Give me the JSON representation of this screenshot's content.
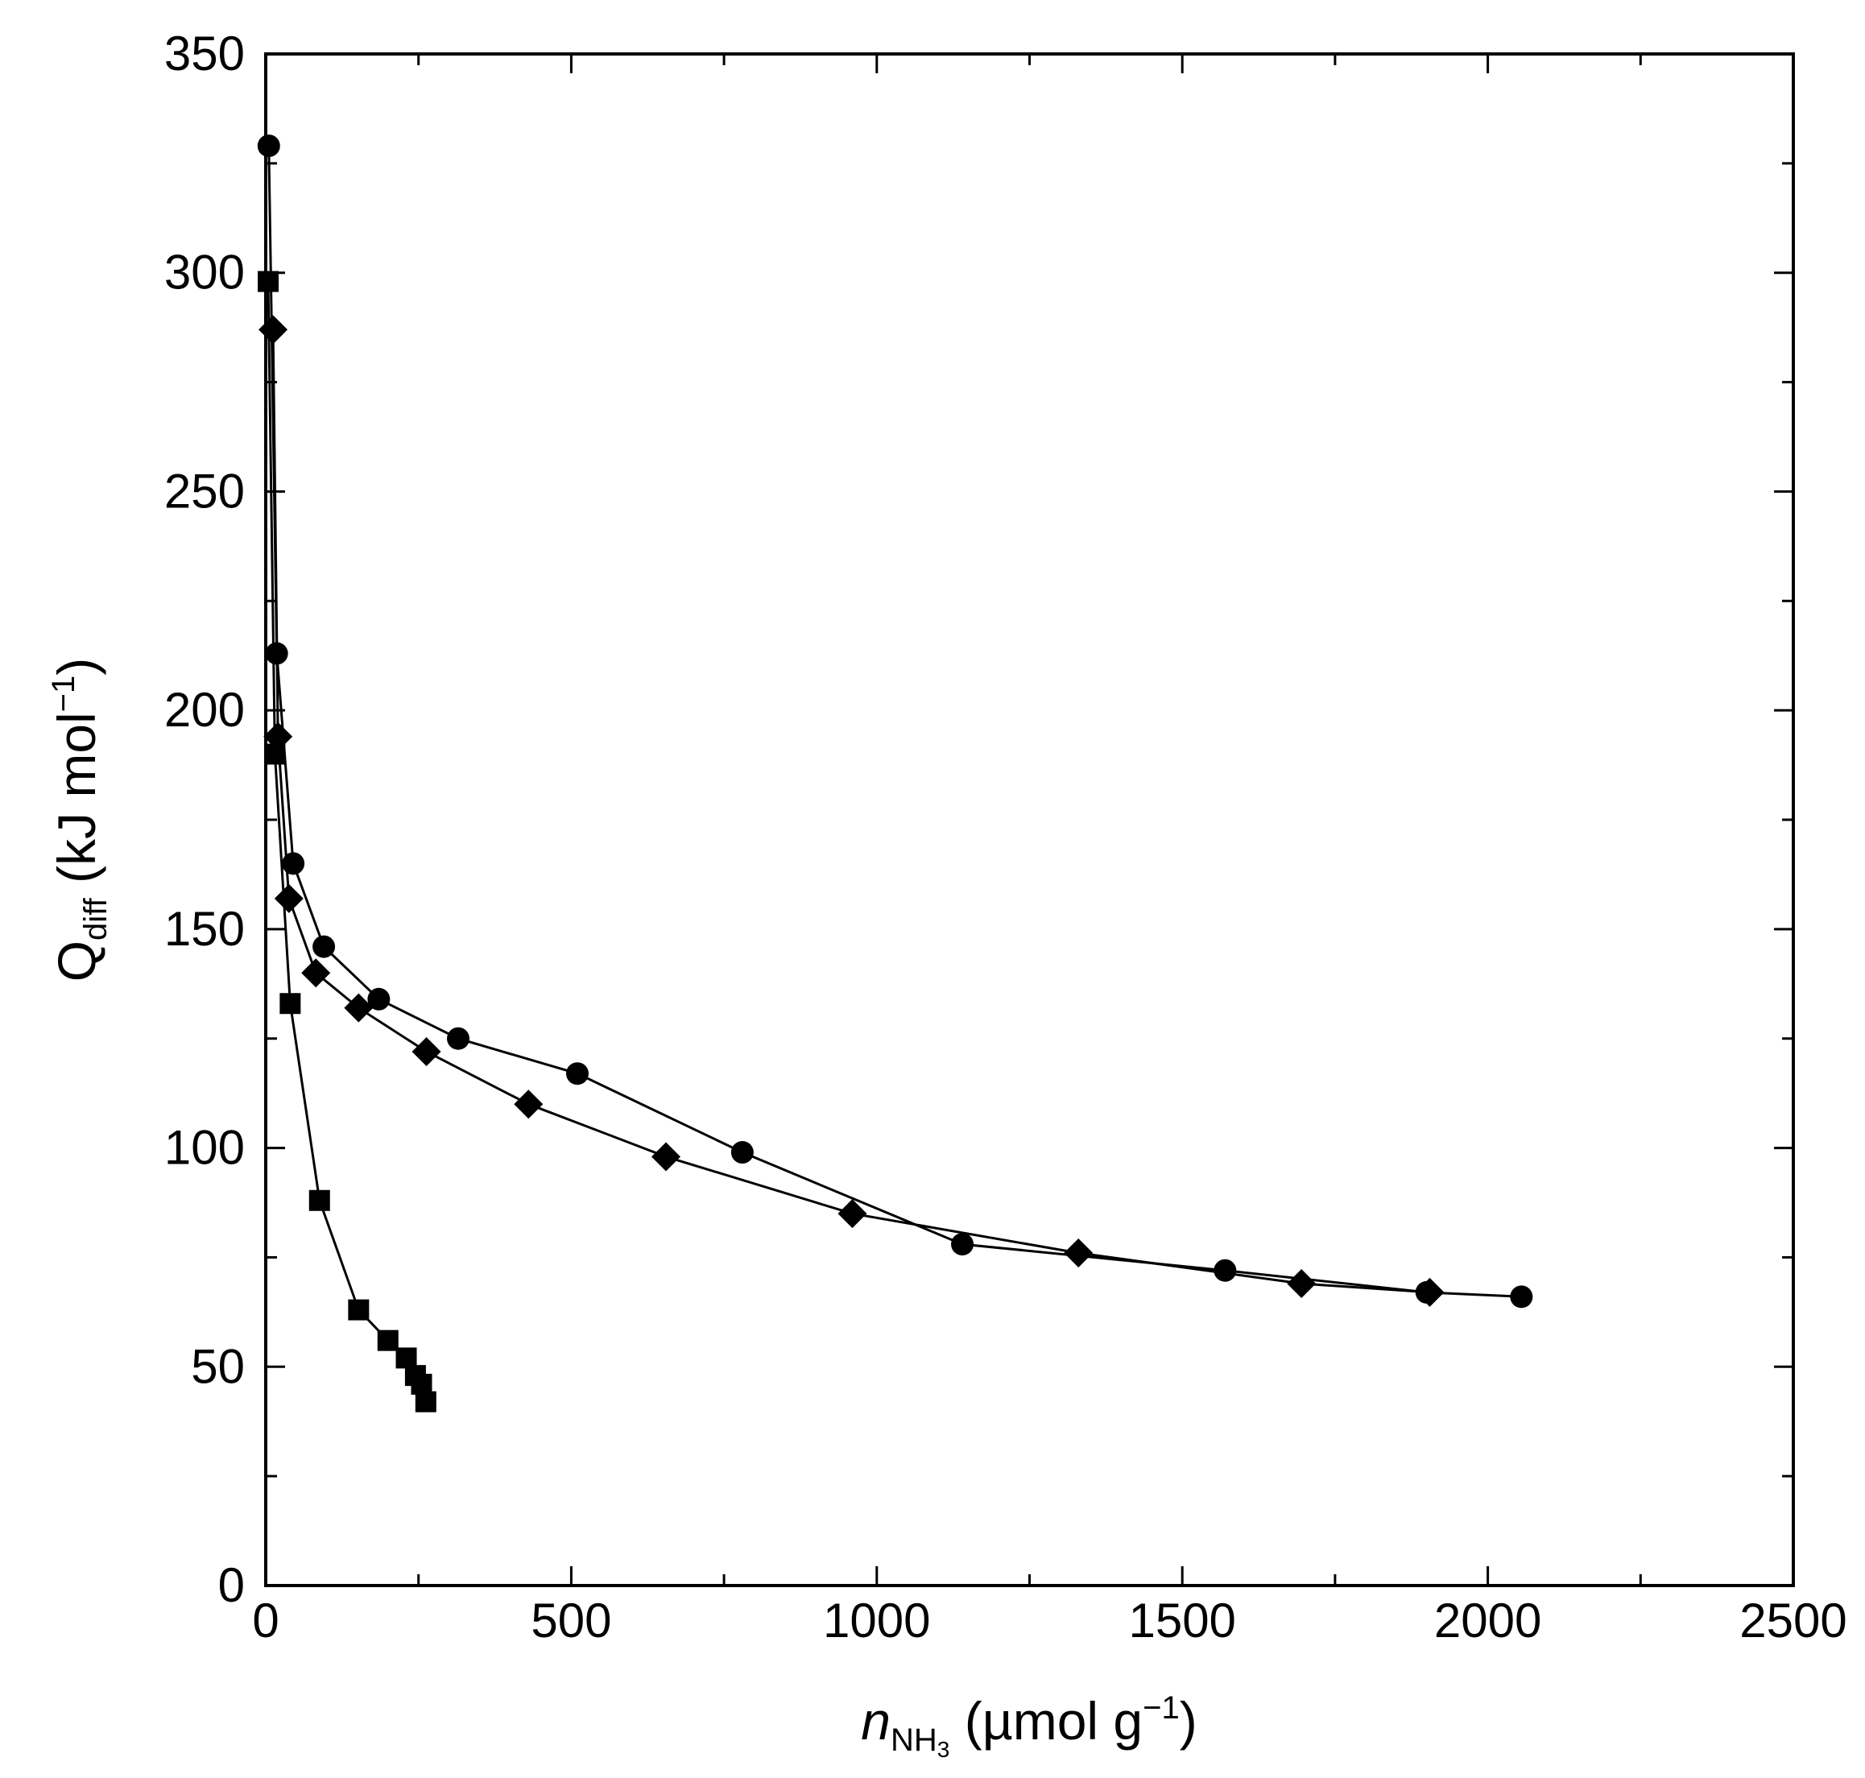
{
  "chart_data": {
    "type": "scatter",
    "xlim": [
      0,
      2500
    ],
    "ylim": [
      0,
      350
    ],
    "x_ticks": [
      0,
      500,
      1000,
      1500,
      2000,
      2500
    ],
    "y_ticks": [
      0,
      50,
      100,
      150,
      200,
      250,
      300,
      350
    ],
    "x_tick_labels": [
      "0",
      "500",
      "1000",
      "1500",
      "2000",
      "2500"
    ],
    "y_tick_labels": [
      "0",
      "50",
      "100",
      "150",
      "200",
      "250",
      "300",
      "350"
    ],
    "xlabel": {
      "italic": "n",
      "sub": "NH",
      "subsub": "3",
      "rest": " (µmol g",
      "sup": "−1",
      "close": ")"
    },
    "ylabel": {
      "main": "Q",
      "sub": "diff",
      "rest": " (kJ mol",
      "sup": "−1",
      "close": ")"
    },
    "grid": false,
    "legend": "none",
    "series": [
      {
        "marker": "circle",
        "color": "#000000",
        "points": [
          [
            5,
            329
          ],
          [
            18,
            213
          ],
          [
            45,
            165
          ],
          [
            95,
            146
          ],
          [
            185,
            134
          ],
          [
            315,
            125
          ],
          [
            510,
            117
          ],
          [
            780,
            99
          ],
          [
            1140,
            78
          ],
          [
            1570,
            72
          ],
          [
            1900,
            67
          ],
          [
            2055,
            66
          ]
        ]
      },
      {
        "marker": "diamond",
        "color": "#000000",
        "points": [
          [
            12,
            287
          ],
          [
            20,
            194
          ],
          [
            38,
            157
          ],
          [
            82,
            140
          ],
          [
            152,
            132
          ],
          [
            263,
            122
          ],
          [
            430,
            110
          ],
          [
            655,
            98
          ],
          [
            960,
            85
          ],
          [
            1330,
            76
          ],
          [
            1695,
            69
          ],
          [
            1905,
            67
          ]
        ]
      },
      {
        "marker": "square",
        "color": "#000000",
        "points": [
          [
            4,
            298
          ],
          [
            15,
            190
          ],
          [
            40,
            133
          ],
          [
            88,
            88
          ],
          [
            152,
            63
          ],
          [
            200,
            56
          ],
          [
            230,
            52
          ],
          [
            245,
            48
          ],
          [
            255,
            46
          ],
          [
            262,
            42
          ]
        ]
      }
    ]
  }
}
